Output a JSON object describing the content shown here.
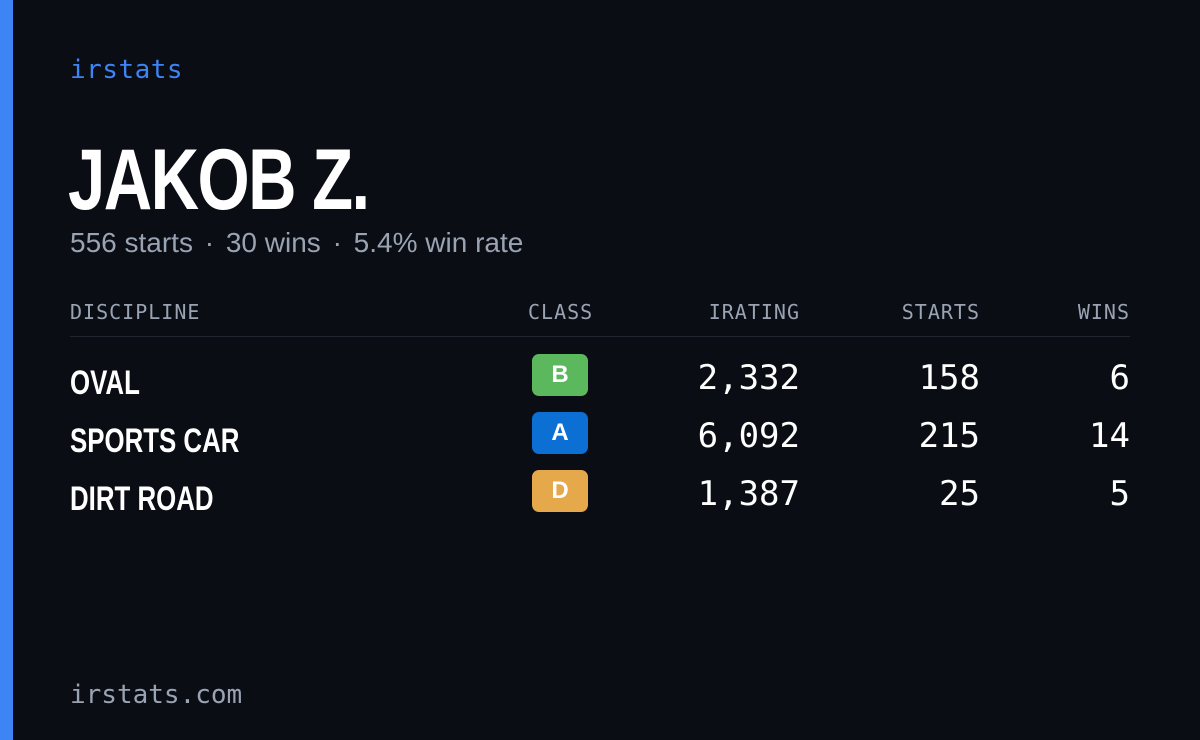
{
  "brand": "irstats",
  "driver": {
    "name": "JAKOB Z.",
    "starts_text": "556 starts",
    "wins_text": "30 wins",
    "win_rate_text": "5.4% win rate",
    "separator": "·"
  },
  "table": {
    "headers": {
      "discipline": "DISCIPLINE",
      "class": "CLASS",
      "irating": "IRATING",
      "starts": "STARTS",
      "wins": "WINS"
    },
    "rows": [
      {
        "discipline": "OVAL",
        "class": "B",
        "class_color": "#5cb85c",
        "irating": "2,332",
        "starts": "158",
        "wins": "6"
      },
      {
        "discipline": "SPORTS CAR",
        "class": "A",
        "class_color": "#0b6fd4",
        "irating": "6,092",
        "starts": "215",
        "wins": "14"
      },
      {
        "discipline": "DIRT ROAD",
        "class": "D",
        "class_color": "#e5a84a",
        "irating": "1,387",
        "starts": "25",
        "wins": "5"
      }
    ]
  },
  "footer": "irstats.com",
  "colors": {
    "accent": "#3d84f5",
    "background": "#0a0d14",
    "muted": "#9aa3b2"
  }
}
